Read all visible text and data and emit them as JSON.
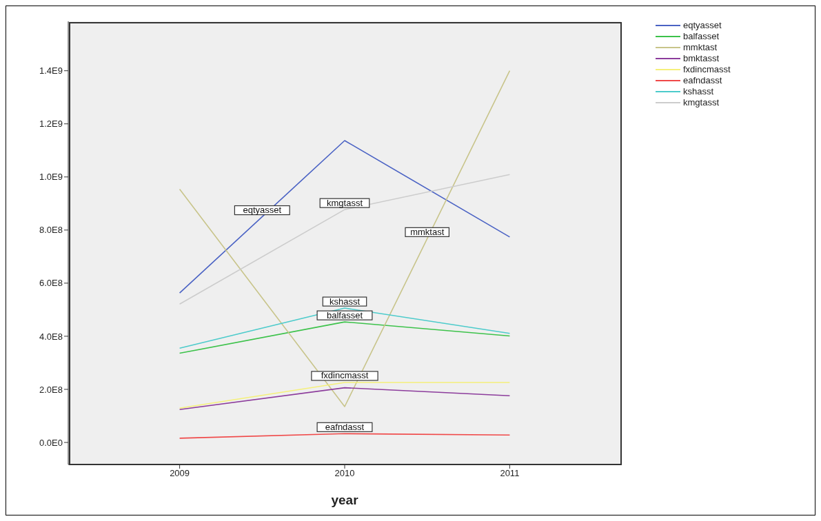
{
  "chart_data": {
    "type": "line",
    "xlabel": "year",
    "x": [
      2009,
      2010,
      2011
    ],
    "xlim": [
      2008.325,
      2011.675
    ],
    "xticks": [
      2009,
      2010,
      2011
    ],
    "ylim": [
      -83000000,
      1586000000
    ],
    "yticks": [
      {
        "value": 0,
        "label": "0.0E0"
      },
      {
        "value": 200000000,
        "label": "2.0E8"
      },
      {
        "value": 400000000,
        "label": "4.0E8"
      },
      {
        "value": 600000000,
        "label": "6.0E8"
      },
      {
        "value": 800000000,
        "label": "8.0E8"
      },
      {
        "value": 1000000000,
        "label": "1.0E9"
      },
      {
        "value": 1200000000,
        "label": "1.2E9"
      },
      {
        "value": 1400000000,
        "label": "1.4E9"
      }
    ],
    "series": [
      {
        "name": "eqtyasset",
        "color": "#4a62c4",
        "values": [
          563000000,
          1137000000,
          774000000
        ]
      },
      {
        "name": "balfasset",
        "color": "#3cc24a",
        "values": [
          336000000,
          454000000,
          401000000
        ]
      },
      {
        "name": "mmktast",
        "color": "#c8c48a",
        "values": [
          954000000,
          135000000,
          1400000000
        ]
      },
      {
        "name": "bmktasst",
        "color": "#8c3c9c",
        "values": [
          124000000,
          206000000,
          176000000
        ]
      },
      {
        "name": "fxdincmasst",
        "color": "#f5f07a",
        "values": [
          129000000,
          226000000,
          226000000
        ]
      },
      {
        "name": "eafndasst",
        "color": "#f04848",
        "values": [
          16000000,
          33000000,
          28000000
        ]
      },
      {
        "name": "kshasst",
        "color": "#4ccbcb",
        "values": [
          355000000,
          506000000,
          411000000
        ]
      },
      {
        "name": "kmgtasst",
        "color": "#cccccc",
        "values": [
          521000000,
          877000000,
          1009000000
        ]
      }
    ],
    "annotations": [
      {
        "text": "eqtyasset",
        "x": 2009.5,
        "y": 850000000
      },
      {
        "text": "kmgtasst",
        "x": 2010,
        "y": 877000000
      },
      {
        "text": "mmktast",
        "x": 2010.5,
        "y": 767500000
      },
      {
        "text": "kshasst",
        "x": 2010,
        "y": 506000000
      },
      {
        "text": "balfasset",
        "x": 2010,
        "y": 454000000
      },
      {
        "text": "fxdincmasst",
        "x": 2010,
        "y": 226000000
      },
      {
        "text": "eafndasst",
        "x": 2010,
        "y": 33000000
      }
    ],
    "grid": false,
    "legend": "top right",
    "marker": "none",
    "line_style": "solid"
  }
}
